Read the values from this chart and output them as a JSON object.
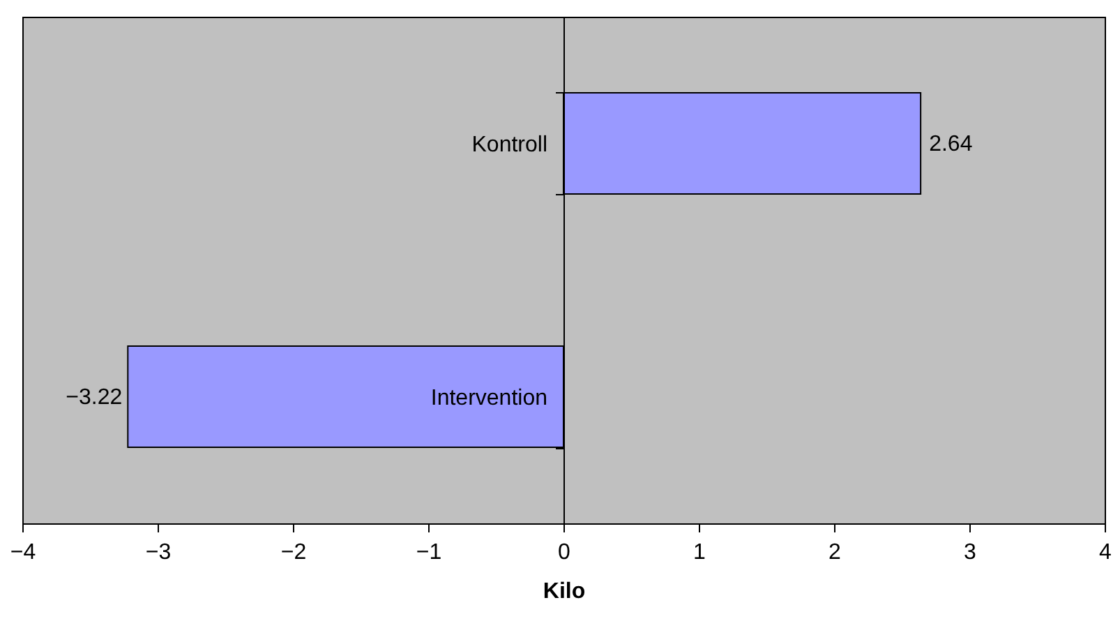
{
  "chart_data": {
    "type": "bar",
    "orientation": "horizontal",
    "xlabel": "Kilo",
    "categories": [
      "Kontroll",
      "Intervention"
    ],
    "values": [
      2.64,
      -3.22
    ],
    "color": "#9999ff",
    "xlim": [
      -4,
      4
    ],
    "xticks": [
      -4,
      -3,
      -2,
      -1,
      0,
      1,
      2,
      3,
      4
    ],
    "data_labels": true
  }
}
